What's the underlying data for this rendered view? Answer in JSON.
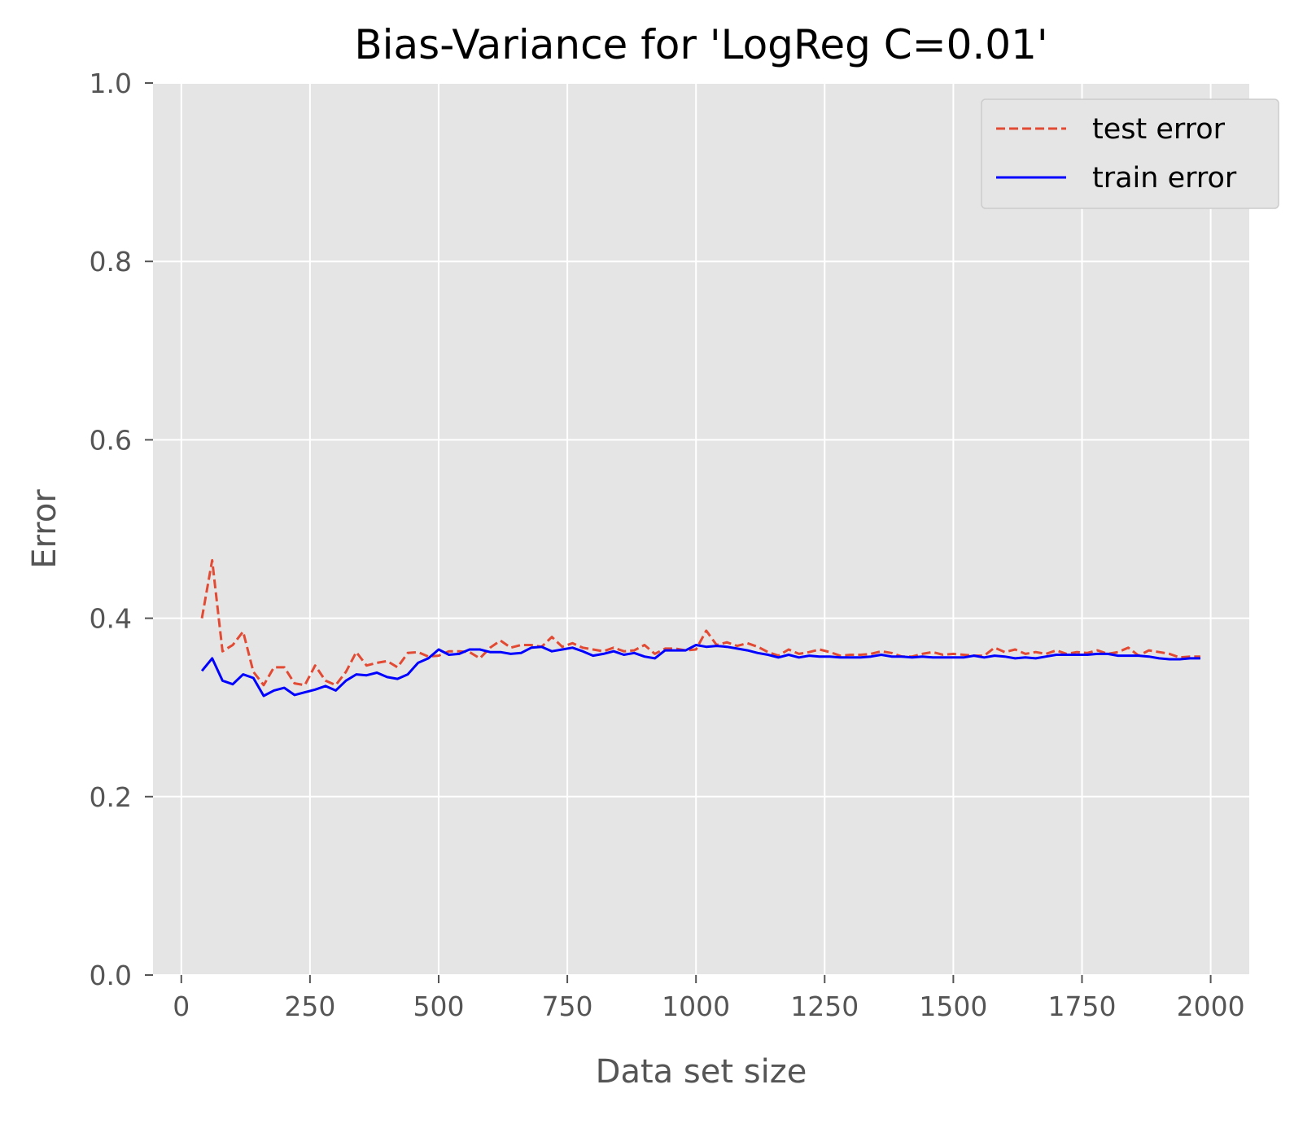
{
  "chart_data": {
    "type": "line",
    "title": "Bias-Variance for 'LogReg C=0.01'",
    "xlabel": "Data set size",
    "ylabel": "Error",
    "xlim": [
      -55,
      2075
    ],
    "ylim": [
      0.0,
      1.0
    ],
    "xticks": [
      0,
      250,
      500,
      750,
      1000,
      1250,
      1500,
      1750,
      2000
    ],
    "xtick_labels": [
      "0",
      "250",
      "500",
      "750",
      "1000",
      "1250",
      "1500",
      "1750",
      "2000"
    ],
    "yticks": [
      0.0,
      0.2,
      0.4,
      0.6,
      0.8,
      1.0
    ],
    "ytick_labels": [
      "0.0",
      "0.2",
      "0.4",
      "0.6",
      "0.8",
      "1.0"
    ],
    "grid": true,
    "legend_position": "top-right",
    "x": [
      40,
      60,
      80,
      100,
      120,
      140,
      160,
      180,
      200,
      220,
      240,
      260,
      280,
      300,
      320,
      340,
      360,
      380,
      400,
      420,
      440,
      460,
      480,
      500,
      520,
      540,
      560,
      580,
      600,
      620,
      640,
      660,
      680,
      700,
      720,
      740,
      760,
      780,
      800,
      820,
      840,
      860,
      880,
      900,
      920,
      940,
      960,
      980,
      1000,
      1020,
      1040,
      1060,
      1080,
      1100,
      1120,
      1140,
      1160,
      1180,
      1200,
      1220,
      1240,
      1260,
      1280,
      1300,
      1320,
      1340,
      1360,
      1380,
      1400,
      1420,
      1440,
      1460,
      1480,
      1500,
      1520,
      1540,
      1560,
      1580,
      1600,
      1620,
      1640,
      1660,
      1680,
      1700,
      1720,
      1740,
      1760,
      1780,
      1800,
      1820,
      1840,
      1860,
      1880,
      1900,
      1920,
      1940,
      1960,
      1980
    ],
    "series": [
      {
        "name": "test error",
        "color": "#e24a33",
        "style": "dashed",
        "values": [
          0.4,
          0.465,
          0.363,
          0.37,
          0.385,
          0.34,
          0.325,
          0.345,
          0.345,
          0.327,
          0.325,
          0.347,
          0.33,
          0.325,
          0.34,
          0.362,
          0.347,
          0.35,
          0.352,
          0.345,
          0.361,
          0.362,
          0.357,
          0.358,
          0.363,
          0.363,
          0.362,
          0.355,
          0.367,
          0.375,
          0.367,
          0.37,
          0.37,
          0.368,
          0.379,
          0.368,
          0.372,
          0.367,
          0.365,
          0.363,
          0.367,
          0.363,
          0.364,
          0.37,
          0.36,
          0.366,
          0.366,
          0.364,
          0.365,
          0.386,
          0.37,
          0.373,
          0.369,
          0.372,
          0.368,
          0.362,
          0.358,
          0.365,
          0.36,
          0.362,
          0.365,
          0.362,
          0.358,
          0.359,
          0.359,
          0.36,
          0.363,
          0.361,
          0.357,
          0.357,
          0.36,
          0.362,
          0.359,
          0.36,
          0.359,
          0.358,
          0.358,
          0.367,
          0.362,
          0.365,
          0.36,
          0.362,
          0.36,
          0.364,
          0.36,
          0.362,
          0.361,
          0.364,
          0.36,
          0.362,
          0.367,
          0.358,
          0.364,
          0.362,
          0.36,
          0.356,
          0.357,
          0.357
        ]
      },
      {
        "name": "train error",
        "color": "#0000ff",
        "style": "solid",
        "values": [
          0.341,
          0.355,
          0.33,
          0.326,
          0.337,
          0.333,
          0.313,
          0.319,
          0.322,
          0.314,
          0.317,
          0.32,
          0.324,
          0.319,
          0.33,
          0.337,
          0.336,
          0.339,
          0.334,
          0.332,
          0.337,
          0.35,
          0.355,
          0.365,
          0.359,
          0.36,
          0.365,
          0.365,
          0.362,
          0.362,
          0.36,
          0.361,
          0.367,
          0.368,
          0.363,
          0.365,
          0.367,
          0.363,
          0.358,
          0.36,
          0.363,
          0.359,
          0.361,
          0.357,
          0.355,
          0.364,
          0.364,
          0.364,
          0.37,
          0.368,
          0.369,
          0.368,
          0.366,
          0.364,
          0.361,
          0.359,
          0.356,
          0.359,
          0.356,
          0.358,
          0.357,
          0.357,
          0.356,
          0.356,
          0.356,
          0.357,
          0.359,
          0.357,
          0.357,
          0.356,
          0.357,
          0.356,
          0.356,
          0.356,
          0.356,
          0.358,
          0.356,
          0.358,
          0.357,
          0.355,
          0.356,
          0.355,
          0.357,
          0.359,
          0.359,
          0.359,
          0.359,
          0.36,
          0.36,
          0.358,
          0.358,
          0.358,
          0.357,
          0.355,
          0.354,
          0.354,
          0.355,
          0.355
        ]
      }
    ]
  }
}
